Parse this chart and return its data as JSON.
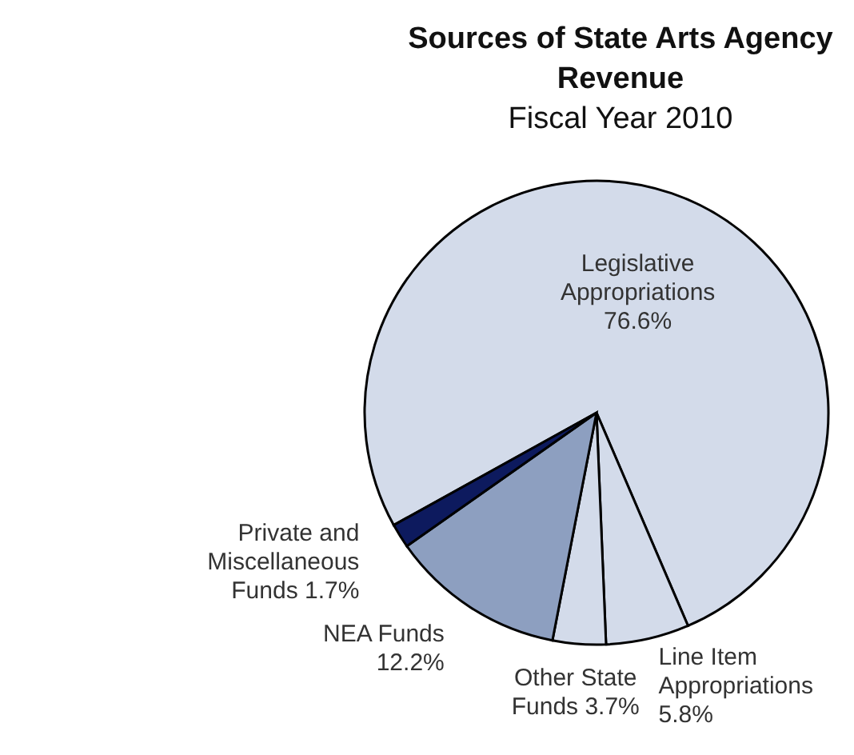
{
  "chart_data": {
    "type": "pie",
    "title": "Sources of State Arts Agency Revenue",
    "subtitle": "Fiscal Year 2010",
    "categories": [
      "Legislative Appropriations",
      "Line Item Appropriations",
      "Other State Funds",
      "NEA Funds",
      "Private and Miscellaneous Funds"
    ],
    "values": [
      76.6,
      5.8,
      3.7,
      12.2,
      1.7
    ],
    "colors": [
      "#d3dbea",
      "#d3dbea",
      "#d3dbea",
      "#8d9fc0",
      "#0d1a5e"
    ],
    "value_labels": [
      "76.6%",
      "5.8%",
      "3.7%",
      "12.2%",
      "1.7%"
    ]
  }
}
